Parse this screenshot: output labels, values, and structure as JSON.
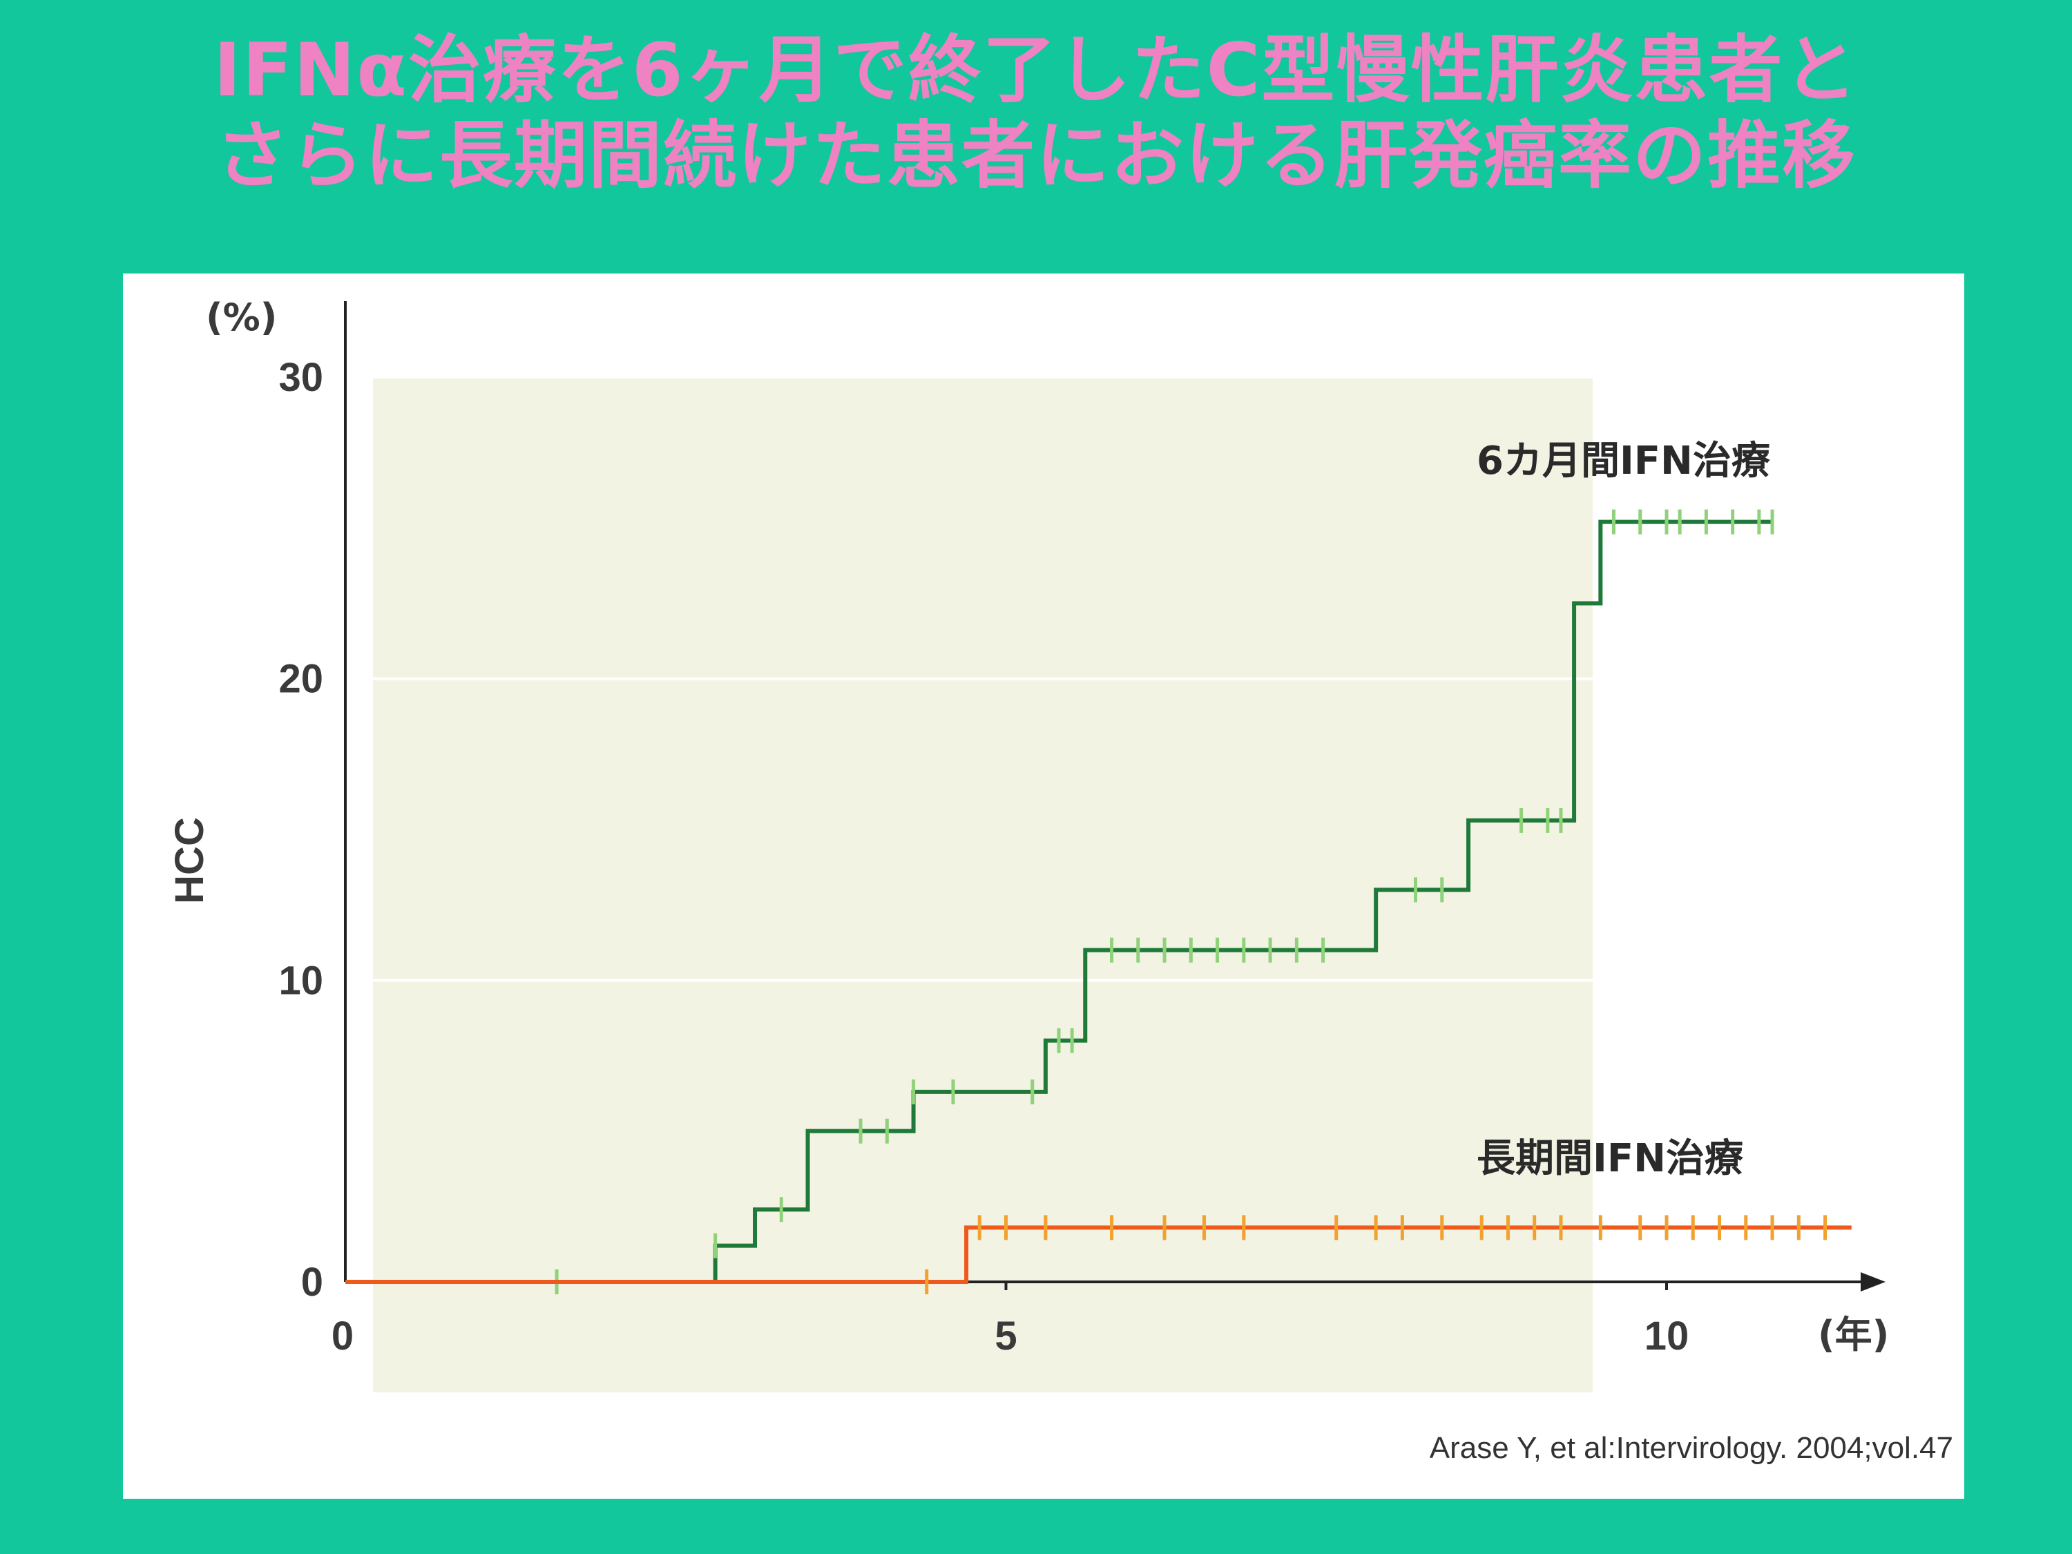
{
  "slide": {
    "title_line1": "IFNα治療を6ヶ月で終了したC型慢性肝炎患者と",
    "title_line2": "さらに長期間続けた患者における肝発癌率の推移"
  },
  "colors": {
    "background": "#12c79c",
    "title": "#ee82c2",
    "plot_bg": "#f3f3e4",
    "series_6m": "#1f7a3a",
    "series_6m_censor": "#8fd27a",
    "series_long": "#ee5a1c",
    "series_long_censor": "#f2a12e"
  },
  "chart_data": {
    "type": "line",
    "step": true,
    "title": "",
    "ylabel": "HCC",
    "y_unit": "(%)",
    "x_unit": "(年)",
    "xlim": [
      0,
      11.5
    ],
    "ylim": [
      0,
      30
    ],
    "x_ticks": [
      0,
      5,
      10
    ],
    "x_tick_labels": [
      "0",
      "5",
      "10"
    ],
    "y_ticks": [
      0,
      10,
      20,
      30
    ],
    "y_tick_labels": [
      "0",
      "10",
      "20",
      "30"
    ],
    "grid": true,
    "series": [
      {
        "name": "6カ月間IFN治療",
        "x": [
          1.5,
          2.8,
          3.1,
          3.5,
          4.3,
          5.3,
          5.6,
          7.8,
          8.5,
          9.3,
          9.5,
          10.8
        ],
        "y": [
          0,
          1.2,
          2.4,
          5.0,
          6.3,
          8.0,
          11.0,
          13.0,
          15.3,
          22.5,
          25.2,
          25.2
        ],
        "censored_x": [
          1.6,
          2.8,
          3.3,
          3.9,
          4.1,
          4.3,
          4.6,
          5.2,
          5.4,
          5.5,
          5.8,
          6.0,
          6.2,
          6.4,
          6.6,
          6.8,
          7.0,
          7.2,
          7.4,
          8.1,
          8.3,
          8.9,
          9.1,
          9.2,
          9.6,
          9.8,
          10.0,
          10.1,
          10.3,
          10.5,
          10.7,
          10.8
        ]
      },
      {
        "name": "長期間IFN治療",
        "x": [
          0,
          4.5,
          4.7,
          11.4
        ],
        "y": [
          0,
          0,
          1.8,
          1.8
        ],
        "censored_x": [
          4.4,
          4.8,
          5.0,
          5.3,
          5.8,
          6.2,
          6.5,
          6.8,
          7.5,
          7.8,
          8.0,
          8.3,
          8.6,
          8.8,
          9.0,
          9.2,
          9.5,
          9.8,
          10.0,
          10.2,
          10.4,
          10.6,
          10.8,
          11.0,
          11.2
        ]
      }
    ]
  },
  "citation": "Arase Y, et al:Intervirology. 2004;vol.47"
}
